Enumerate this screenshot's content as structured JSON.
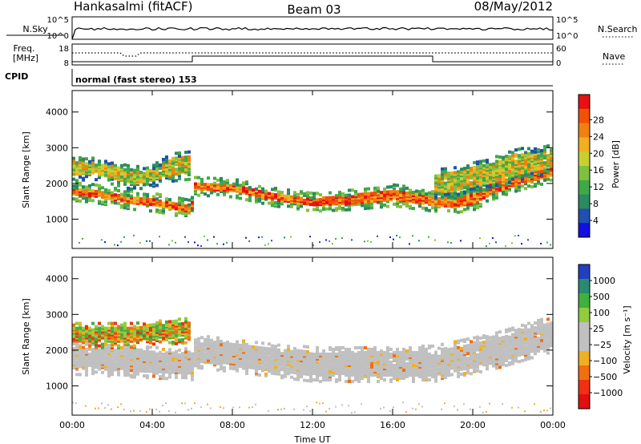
{
  "header": {
    "station": "Hankasalmi (fitACF)",
    "beam": "Beam 03",
    "date": "08/May/2012"
  },
  "top_panels": {
    "nsky_label": "N.Sky",
    "nsky_ticks": [
      "10^5",
      "10^0"
    ],
    "nsearch_label": "N.Search",
    "nsearch_ticks": [
      "10^5",
      "10^0"
    ],
    "freq_label": "Freq.",
    "freq_unit": "[MHz]",
    "freq_ticks": [
      "18",
      "8"
    ],
    "nave_label": "Nave",
    "nave_ticks": [
      "60",
      "0"
    ],
    "cpid_label": "CPID",
    "cpid_text": "normal (fast stereo) 153"
  },
  "chart_data": [
    {
      "type": "heatmap",
      "title": "",
      "xlabel": "",
      "ylabel": "Slant Range [km]",
      "x_tick_labels": [
        "00:00",
        "04:00",
        "08:00",
        "12:00",
        "16:00",
        "20:00",
        "00:00"
      ],
      "xlim_hours": [
        0,
        24
      ],
      "y_ticks": [
        1000,
        2000,
        3000,
        4000
      ],
      "ylim": [
        180,
        4600
      ],
      "colorbar": {
        "label": "Power [dB]",
        "ticks": [
          "4",
          "8",
          "12",
          "16",
          "20",
          "24",
          "28"
        ],
        "colors": [
          "#1010e0",
          "#2050b0",
          "#2a8a60",
          "#40a848",
          "#80c040",
          "#c8d030",
          "#f0b020",
          "#f08010",
          "#f05008",
          "#e81010"
        ]
      },
      "bands": [
        {
          "name": "main",
          "points": [
            [
              0.0,
              1650,
              1850
            ],
            [
              1.0,
              1600,
              1800
            ],
            [
              2.0,
              1500,
              1700
            ],
            [
              3.0,
              1400,
              1600
            ],
            [
              4.0,
              1350,
              1550
            ],
            [
              5.0,
              1250,
              1450
            ],
            [
              5.9,
              1150,
              1350
            ],
            [
              6.0,
              1800,
              2000
            ],
            [
              8.0,
              1750,
              1950
            ],
            [
              10.0,
              1500,
              1700
            ],
            [
              12.0,
              1350,
              1550
            ],
            [
              14.0,
              1400,
              1650
            ],
            [
              16.0,
              1500,
              1800
            ],
            [
              18.0,
              1350,
              1600
            ],
            [
              19.0,
              1300,
              1550
            ],
            [
              20.0,
              1400,
              1700
            ],
            [
              21.0,
              1700,
              2000
            ],
            [
              22.0,
              1900,
              2200
            ],
            [
              24.0,
              2200,
              2500
            ]
          ]
        },
        {
          "name": "upper",
          "points": [
            [
              0.0,
              2200,
              2600
            ],
            [
              1.0,
              2250,
              2550
            ],
            [
              2.0,
              2100,
              2450
            ],
            [
              3.0,
              1950,
              2300
            ],
            [
              4.0,
              2050,
              2350
            ],
            [
              5.0,
              2200,
              2700
            ],
            [
              5.9,
              2250,
              2750
            ]
          ]
        },
        {
          "name": "late",
          "points": [
            [
              18.0,
              1700,
              2200
            ],
            [
              19.0,
              1750,
              2300
            ],
            [
              20.0,
              1900,
              2450
            ],
            [
              21.0,
              2000,
              2550
            ],
            [
              22.0,
              2200,
              2800
            ],
            [
              24.0,
              2450,
              2900
            ]
          ]
        }
      ]
    },
    {
      "type": "heatmap",
      "title": "",
      "xlabel": "Time UT",
      "ylabel": "Slant Range [km]",
      "x_tick_labels": [
        "00:00",
        "04:00",
        "08:00",
        "12:00",
        "16:00",
        "20:00",
        "00:00"
      ],
      "xlim_hours": [
        0,
        24
      ],
      "y_ticks": [
        1000,
        2000,
        3000,
        4000
      ],
      "ylim": [
        180,
        4600
      ],
      "colorbar": {
        "label": "Velocity [m s⁻¹]",
        "ticks": [
          "1000",
          "500",
          "100",
          "25",
          "−25",
          "−100",
          "−500",
          "−1000"
        ],
        "colors": [
          "#2040c0",
          "#2a8a70",
          "#40b040",
          "#90cc40",
          "#c0c0c0",
          "#c0c0c0",
          "#f0b020",
          "#f07010",
          "#f03010",
          "#e01010"
        ]
      },
      "bands": [
        {
          "name": "main",
          "points": [
            [
              0.0,
              1450,
              2050
            ],
            [
              6.0,
              1300,
              1900
            ],
            [
              6.01,
              1650,
              2250
            ],
            [
              12.0,
              1250,
              1900
            ],
            [
              18.0,
              1250,
              1950
            ],
            [
              21.0,
              1600,
              2300
            ],
            [
              24.0,
              2100,
              2800
            ]
          ]
        },
        {
          "name": "upper",
          "points": [
            [
              0.0,
              2200,
              2600
            ],
            [
              3.0,
              2200,
              2600
            ],
            [
              5.9,
              2350,
              2750
            ]
          ]
        }
      ]
    }
  ]
}
